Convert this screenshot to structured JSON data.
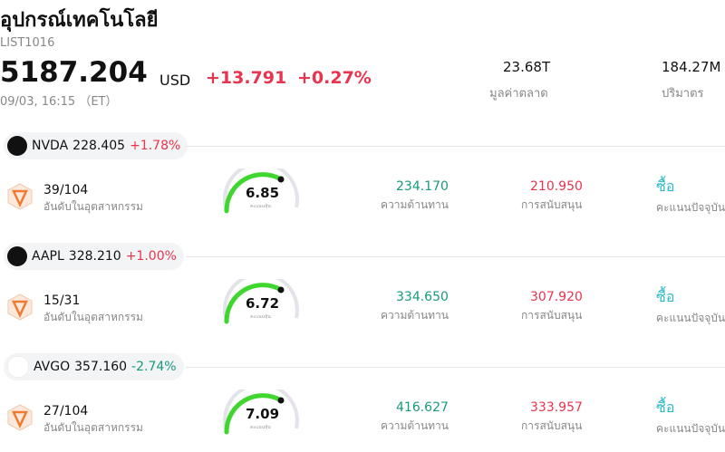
{
  "header": {
    "title": "อุปกรณ์เทคโนโลยี",
    "code": "LIST1016",
    "price": "5187.204",
    "currency": "USD",
    "change": "+13.791",
    "change_pct": "+0.27%",
    "time": "09/03, 16:15 （ET）",
    "stats": [
      {
        "value": "23.68T",
        "label": "มูลค่าตลาด"
      },
      {
        "value": "184.27M",
        "label": "ปริมาตร"
      }
    ]
  },
  "stocks": [
    {
      "ticker": "NVDA",
      "price": "228.405",
      "change_pct": "+1.78%",
      "rank": "39/104",
      "rank_label": "อันดับในอุตสาหกรรม",
      "score": "6.85",
      "score_label": "คะแนนหุ้น",
      "resistance": "234.170",
      "resistance_label": "ความต้านทาน",
      "support": "210.950",
      "support_label": "การสนับสนุน",
      "rating": "ซื้อ",
      "rating_label": "คะแนนปัจจุบัน"
    },
    {
      "ticker": "AAPL",
      "price": "328.210",
      "change_pct": "+1.00%",
      "rank": "15/31",
      "rank_label": "อันดับในอุตสาหกรรม",
      "score": "6.72",
      "score_label": "คะแนนหุ้น",
      "resistance": "334.650",
      "resistance_label": "ความต้านทาน",
      "support": "307.920",
      "support_label": "การสนับสนุน",
      "rating": "ซื้อ",
      "rating_label": "คะแนนปัจจุบัน"
    },
    {
      "ticker": "AVGO",
      "price": "357.160",
      "change_pct": "-2.74%",
      "rank": "27/104",
      "rank_label": "อันดับในอุตสาหกรรม",
      "score": "7.09",
      "score_label": "คะแนนหุ้น",
      "resistance": "416.627",
      "resistance_label": "ความต้านทาน",
      "support": "333.957",
      "support_label": "การสนับสนุน",
      "rating": "ซื้อ",
      "rating_label": "คะแนนปัจจุบัน"
    }
  ]
}
